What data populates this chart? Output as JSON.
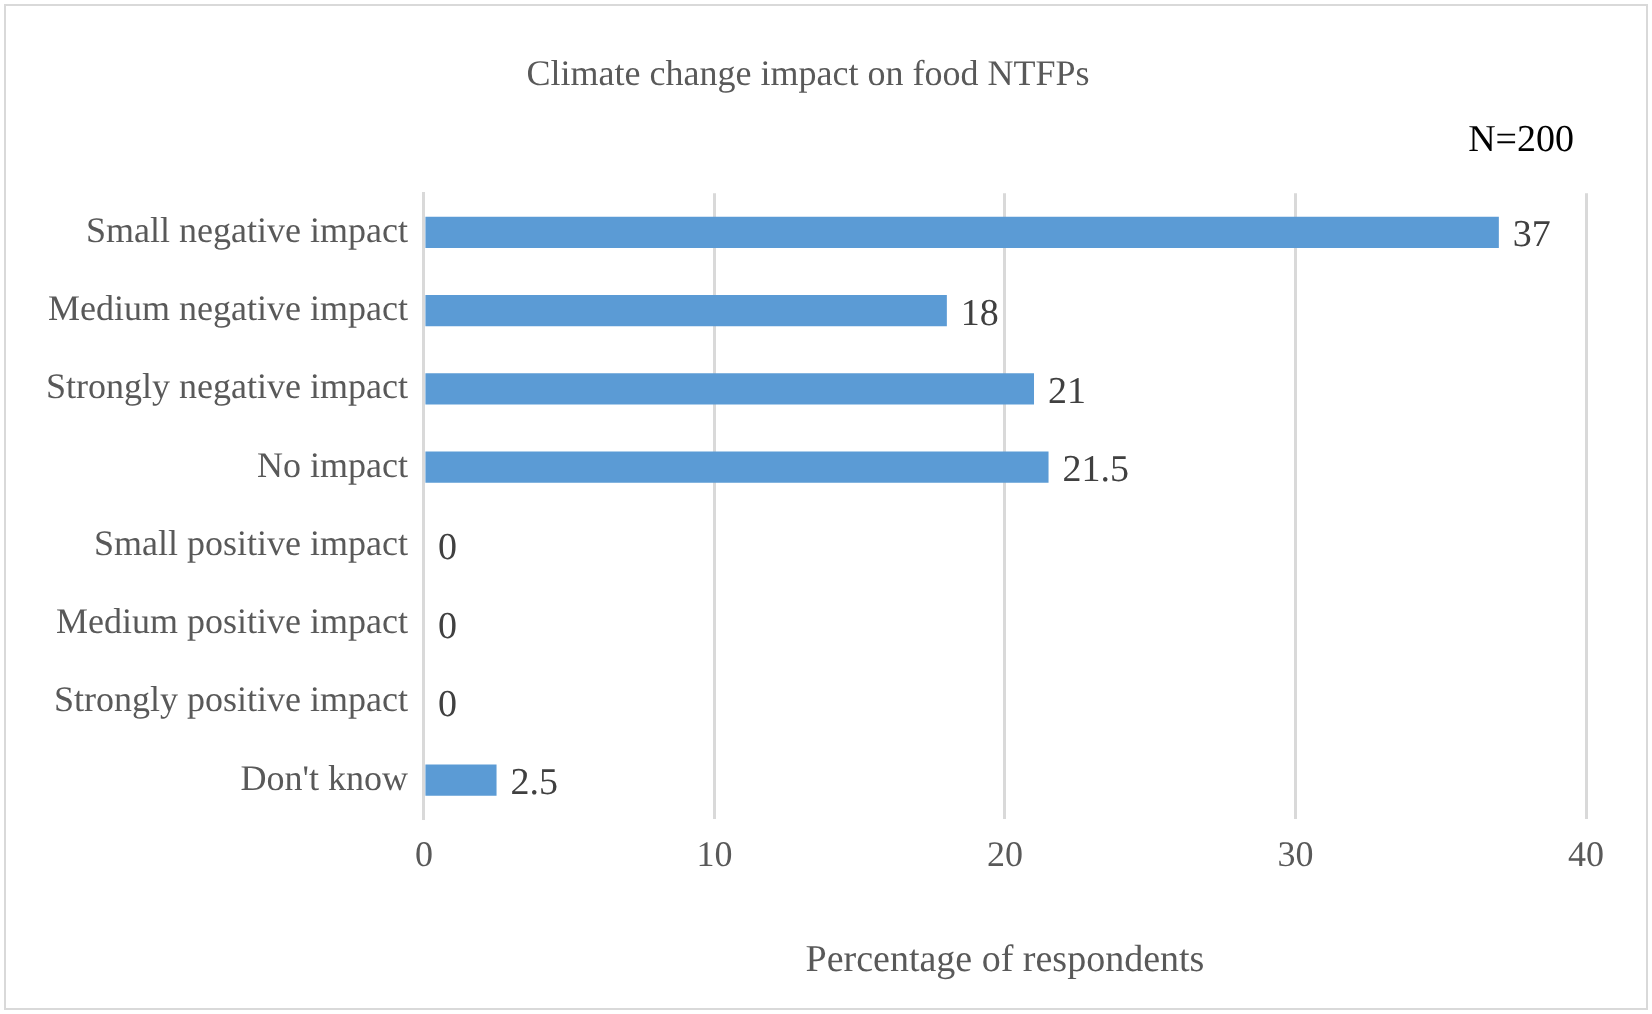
{
  "chart_data": {
    "type": "bar",
    "orientation": "horizontal",
    "title": "Climate change impact on food NTFPs",
    "xlabel": "Percentage of respondents",
    "categories": [
      "Small negative impact",
      "Medium negative impact",
      "Strongly negative impact",
      "No impact",
      "Small positive impact",
      "Medium positive impact",
      "Strongly positive impact",
      "Don't know"
    ],
    "values": [
      37,
      18,
      21,
      21.5,
      0,
      0,
      0,
      2.5
    ],
    "color": "#5b9bd5",
    "xlim": [
      0,
      40
    ],
    "xticks": [
      0,
      10,
      20,
      30,
      40
    ],
    "grid": "x",
    "data_labels": true,
    "legend": false,
    "annotations": [
      "N=200"
    ]
  }
}
